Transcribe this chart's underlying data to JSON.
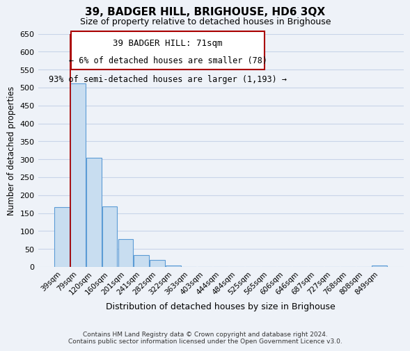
{
  "title": "39, BADGER HILL, BRIGHOUSE, HD6 3QX",
  "subtitle": "Size of property relative to detached houses in Brighouse",
  "xlabel": "Distribution of detached houses by size in Brighouse",
  "ylabel": "Number of detached properties",
  "bar_fill_color": "#c8ddf0",
  "bar_edge_color": "#5b9bd5",
  "categories": [
    "39sqm",
    "79sqm",
    "120sqm",
    "160sqm",
    "201sqm",
    "241sqm",
    "282sqm",
    "322sqm",
    "363sqm",
    "403sqm",
    "444sqm",
    "484sqm",
    "525sqm",
    "565sqm",
    "606sqm",
    "646sqm",
    "687sqm",
    "727sqm",
    "768sqm",
    "808sqm",
    "849sqm"
  ],
  "values": [
    167,
    512,
    305,
    168,
    78,
    33,
    20,
    4,
    0,
    0,
    0,
    0,
    0,
    0,
    0,
    0,
    0,
    0,
    0,
    0,
    3
  ],
  "ylim": [
    0,
    650
  ],
  "yticks": [
    0,
    50,
    100,
    150,
    200,
    250,
    300,
    350,
    400,
    450,
    500,
    550,
    600,
    650
  ],
  "annotation_title": "39 BADGER HILL: 71sqm",
  "annotation_line1": "← 6% of detached houses are smaller (78)",
  "annotation_line2": "93% of semi-detached houses are larger (1,193) →",
  "footer_line1": "Contains HM Land Registry data © Crown copyright and database right 2024.",
  "footer_line2": "Contains public sector information licensed under the Open Government Licence v3.0.",
  "red_line_color": "#aa0000",
  "grid_color": "#c8d4e8",
  "background_color": "#eef2f8"
}
